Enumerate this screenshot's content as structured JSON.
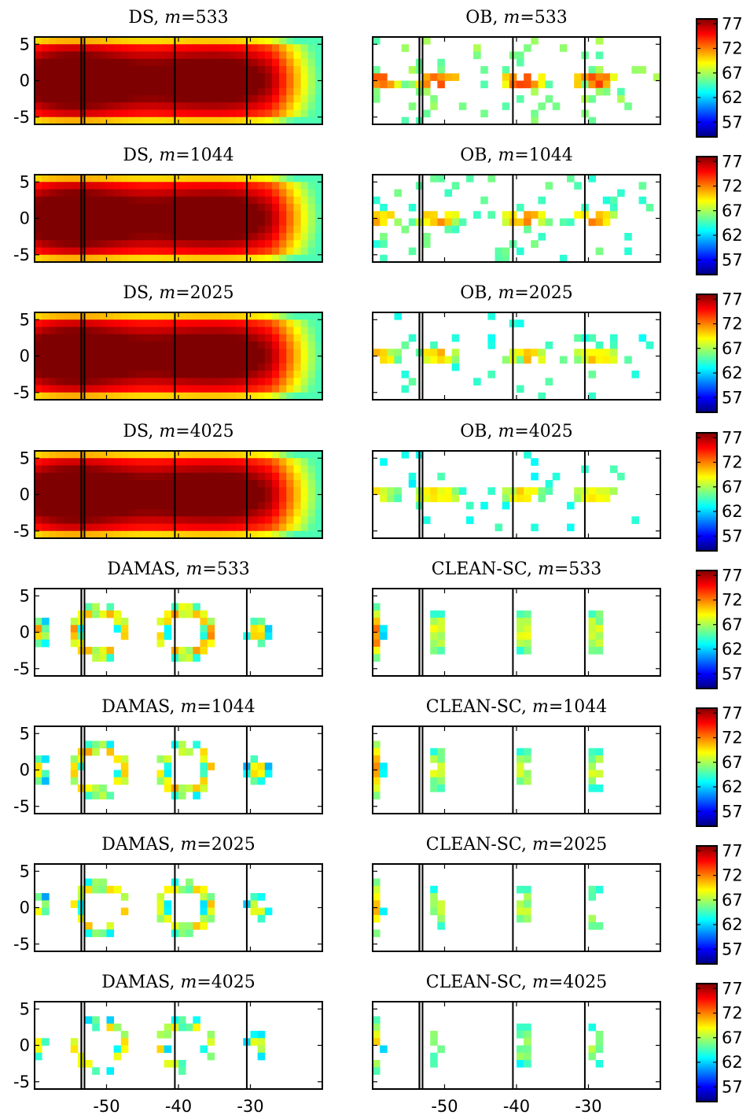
{
  "figure": {
    "colormap": "jet",
    "colors": [
      "#00007f",
      "#0000ff",
      "#007fff",
      "#00ffff",
      "#7fff7f",
      "#ffff00",
      "#ff7f00",
      "#ff0000",
      "#7f0000"
    ],
    "chart_data": [
      {
        "type": "heatmap",
        "method": "DS",
        "m": "533",
        "title_prefix": "DS, ",
        "title_value": "=533",
        "map_kind": "diffuse"
      },
      {
        "type": "heatmap",
        "method": "OB",
        "m": "533",
        "title_prefix": "OB, ",
        "title_value": "=533",
        "map_kind": "sparse",
        "density": 0.22,
        "strength": 1.0
      },
      {
        "type": "heatmap",
        "method": "DS",
        "m": "1044",
        "title_prefix": "DS, ",
        "title_value": "=1044",
        "map_kind": "diffuse"
      },
      {
        "type": "heatmap",
        "method": "OB",
        "m": "1044",
        "title_prefix": "OB, ",
        "title_value": "=1044",
        "map_kind": "sparse",
        "density": 0.16,
        "strength": 0.9
      },
      {
        "type": "heatmap",
        "method": "DS",
        "m": "2025",
        "title_prefix": "DS, ",
        "title_value": "=2025",
        "map_kind": "diffuse"
      },
      {
        "type": "heatmap",
        "method": "OB",
        "m": "2025",
        "title_prefix": "OB, ",
        "title_value": "=2025",
        "map_kind": "sparse",
        "density": 0.12,
        "strength": 0.85
      },
      {
        "type": "heatmap",
        "method": "DS",
        "m": "4025",
        "title_prefix": "DS, ",
        "title_value": "=4025",
        "map_kind": "diffuse"
      },
      {
        "type": "heatmap",
        "method": "OB",
        "m": "4025",
        "title_prefix": "OB, ",
        "title_value": "=4025",
        "map_kind": "sparse",
        "density": 0.09,
        "strength": 0.8
      },
      {
        "type": "heatmap",
        "method": "DAMAS",
        "m": "533",
        "title_prefix": "DAMAS, ",
        "title_value": "=533",
        "map_kind": "ring",
        "density": 0.6,
        "strength": 0.75
      },
      {
        "type": "heatmap",
        "method": "CLEAN-SC",
        "m": "533",
        "title_prefix": "CLEAN-SC, ",
        "title_value": "=533",
        "map_kind": "cross",
        "density": 0.7,
        "strength": 0.8
      },
      {
        "type": "heatmap",
        "method": "DAMAS",
        "m": "1044",
        "title_prefix": "DAMAS, ",
        "title_value": "=1044",
        "map_kind": "ring",
        "density": 0.5,
        "strength": 0.72
      },
      {
        "type": "heatmap",
        "method": "CLEAN-SC",
        "m": "1044",
        "title_prefix": "CLEAN-SC, ",
        "title_value": "=1044",
        "map_kind": "cross",
        "density": 0.55,
        "strength": 0.78
      },
      {
        "type": "heatmap",
        "method": "DAMAS",
        "m": "2025",
        "title_prefix": "DAMAS, ",
        "title_value": "=2025",
        "map_kind": "ring",
        "density": 0.4,
        "strength": 0.68
      },
      {
        "type": "heatmap",
        "method": "CLEAN-SC",
        "m": "2025",
        "title_prefix": "CLEAN-SC, ",
        "title_value": "=2025",
        "map_kind": "cross",
        "density": 0.4,
        "strength": 0.75
      },
      {
        "type": "heatmap",
        "method": "DAMAS",
        "m": "4025",
        "title_prefix": "DAMAS, ",
        "title_value": "=4025",
        "map_kind": "ring",
        "density": 0.3,
        "strength": 0.65
      },
      {
        "type": "heatmap",
        "method": "CLEAN-SC",
        "m": "4025",
        "title_prefix": "CLEAN-SC, ",
        "title_value": "=4025",
        "map_kind": "cross",
        "density": 0.3,
        "strength": 0.72
      }
    ],
    "title_variable": "m",
    "x_range": [
      -60,
      -20
    ],
    "y_range": [
      -6,
      6
    ],
    "x_ticks": [
      -50,
      -40,
      -30
    ],
    "x_tick_labels": [
      "-50",
      "-40",
      "-30"
    ],
    "y_ticks": [
      5,
      0,
      -5
    ],
    "y_tick_labels": [
      "5",
      "0",
      "-5"
    ],
    "vertical_lines_x": [
      -53.5,
      -40.5,
      -30.5
    ],
    "colorbar": {
      "range": [
        54,
        78
      ],
      "ticks": [
        77,
        72,
        67,
        62,
        57
      ],
      "tick_labels": [
        "77",
        "72",
        "67",
        "62",
        "57"
      ]
    },
    "grid": false
  }
}
